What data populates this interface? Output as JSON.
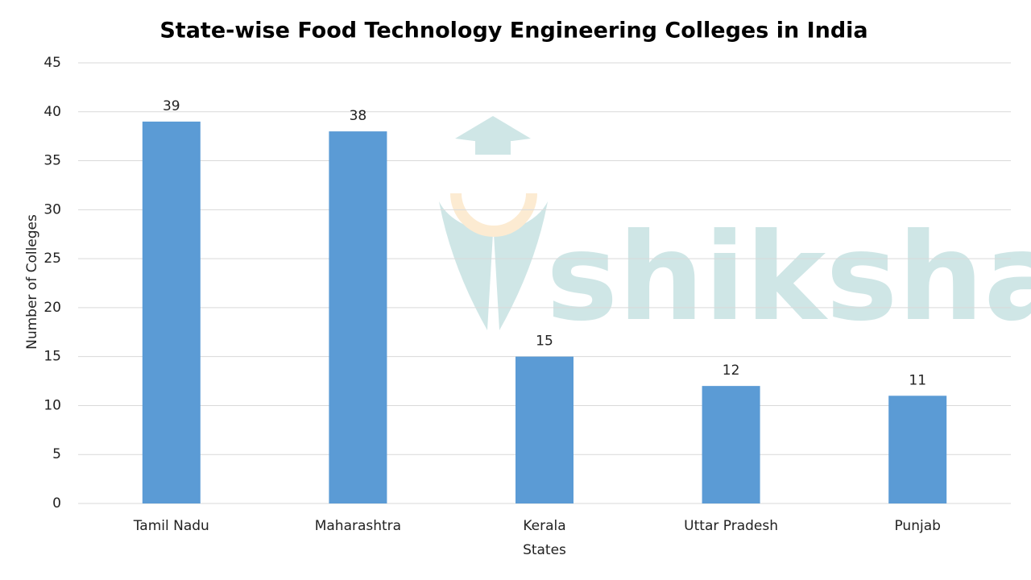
{
  "chart_data": {
    "type": "bar",
    "title": "State-wise Food Technology Engineering Colleges in India",
    "x_label": "States",
    "y_label": "Number of Colleges",
    "categories": [
      "Tamil Nadu",
      "Maharashtra",
      "Kerala",
      "Uttar Pradesh",
      "Punjab"
    ],
    "values": [
      39,
      38,
      15,
      12,
      11
    ],
    "color": "#5b9bd5",
    "ylim": [
      0,
      45
    ],
    "yticks": [
      0,
      5,
      10,
      15,
      20,
      25,
      30,
      35,
      40,
      45
    ],
    "grid": true,
    "watermark": "shiksha"
  }
}
